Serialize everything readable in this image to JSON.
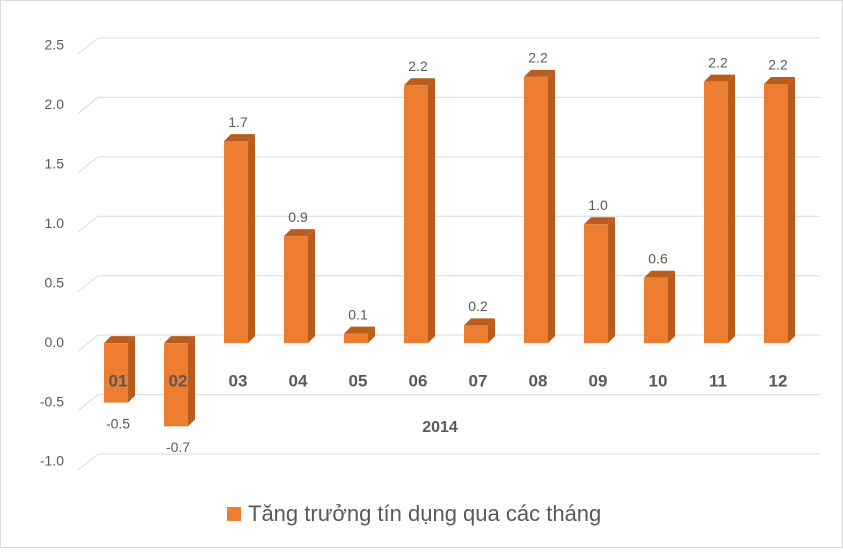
{
  "chart_data": {
    "type": "bar3d",
    "categories": [
      "01",
      "02",
      "03",
      "04",
      "05",
      "06",
      "07",
      "08",
      "09",
      "10",
      "11",
      "12"
    ],
    "values": [
      -0.5,
      -0.7,
      1.7,
      0.9,
      0.08,
      2.17,
      0.15,
      2.24,
      1.0,
      0.55,
      2.2,
      2.18
    ],
    "value_labels": [
      "-0.5",
      "-0.7",
      "1.7",
      "0.9",
      "0.1",
      "2.2",
      "0.2",
      "2.2",
      "1.0",
      "0.6",
      "2.2",
      "2.2"
    ],
    "color": "#ed7d31",
    "side_color": "#b95d1f",
    "xlabel": "2014",
    "series_name": "Tăng trưởng tín dụng qua các tháng",
    "ylim": [
      -1.0,
      2.5
    ],
    "yticks": [
      {
        "value": -1.0,
        "label": "-1.0"
      },
      -0.5,
      {
        "value": 0.0,
        "label": "0.0"
      },
      0.5,
      {
        "value": 1.0,
        "label": "1.0"
      },
      1.5,
      {
        "value": 2.0,
        "label": "2.0"
      },
      2.5
    ],
    "grid": true
  }
}
